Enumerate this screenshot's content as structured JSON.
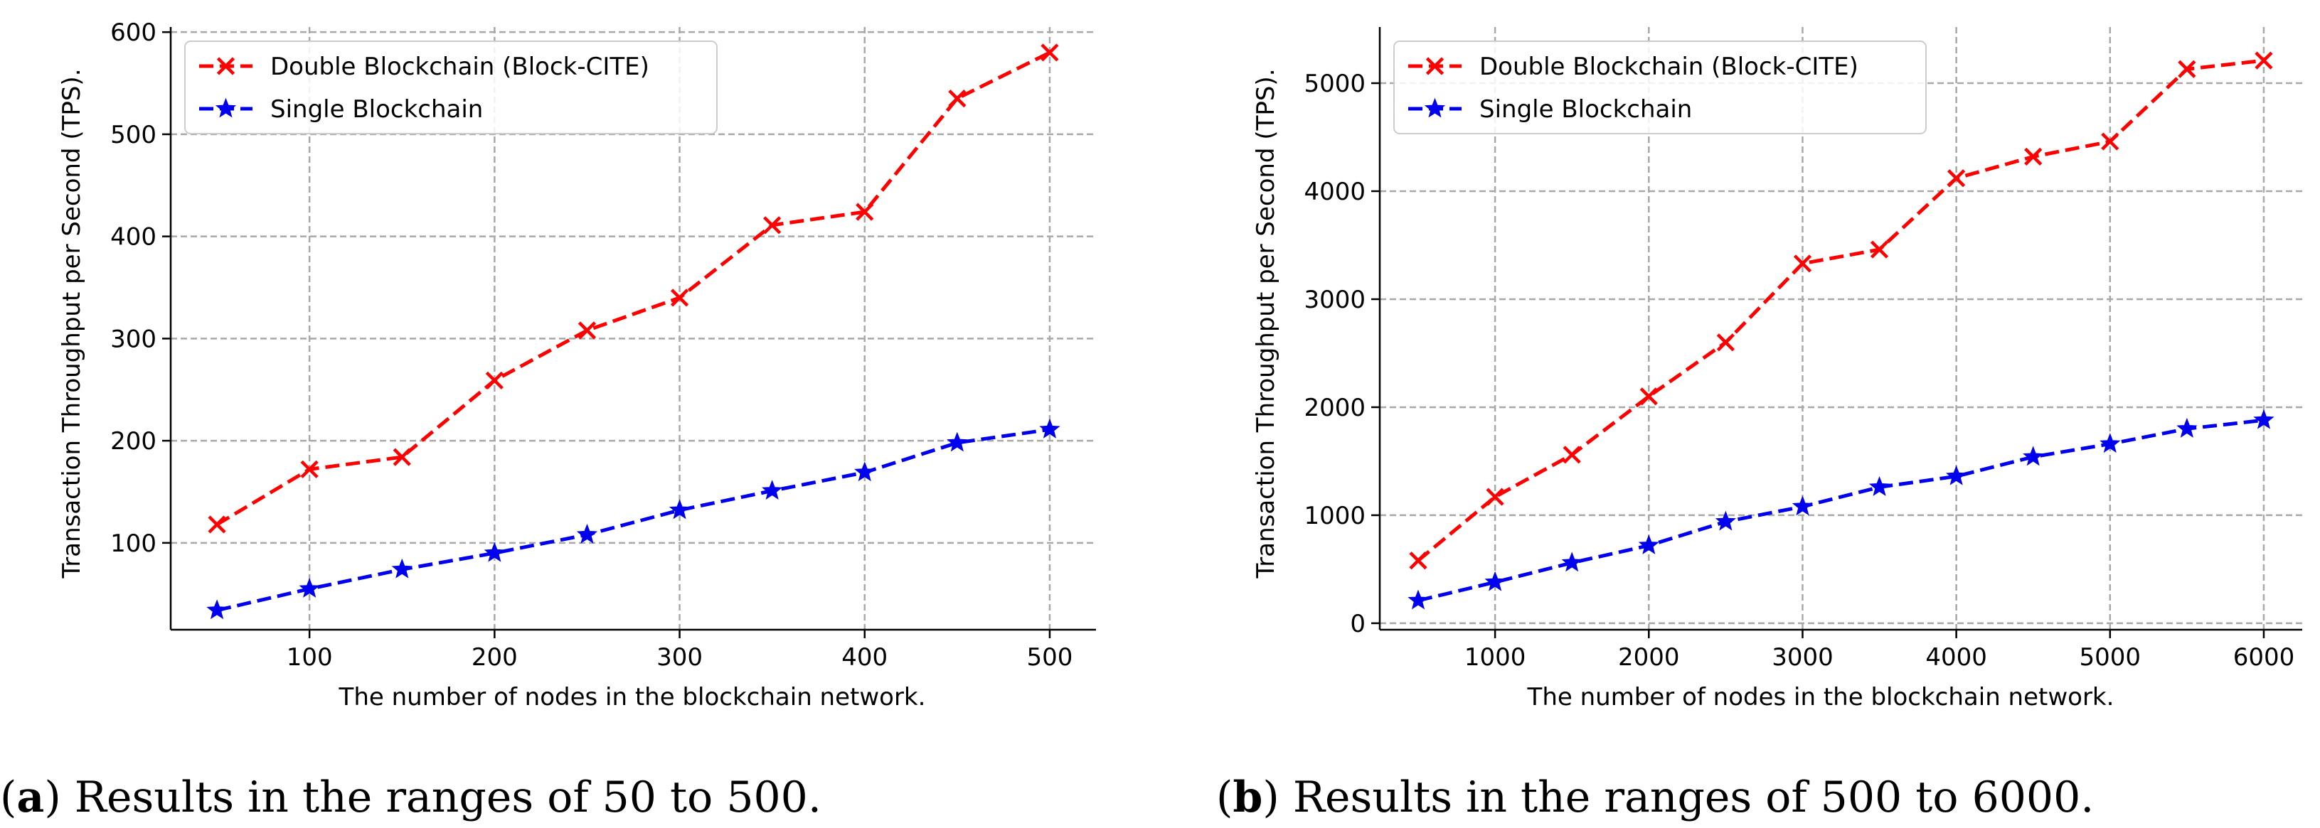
{
  "chart_data": [
    {
      "type": "line",
      "xlabel": "The number of nodes in the blockchain network.",
      "ylabel": "Transaction Throughput per Second (TPS).",
      "xlim": [
        25,
        525
      ],
      "ylim": [
        15,
        605
      ],
      "xticks": [
        100,
        200,
        300,
        400,
        500
      ],
      "yticks": [
        100,
        200,
        300,
        400,
        500,
        600
      ],
      "grid": true,
      "legend_position": "top-left",
      "caption_letter": "a",
      "caption_text": " Results in the ranges of 50 to 500.",
      "series": [
        {
          "name": "Double Blockchain (Block-CITE)",
          "color": "#ff0000",
          "marker": "x",
          "x": [
            50,
            100,
            150,
            200,
            250,
            300,
            350,
            400,
            450,
            500
          ],
          "y": [
            118,
            172,
            184,
            259,
            308,
            340,
            411,
            424,
            535,
            580
          ]
        },
        {
          "name": "Single Blockchain",
          "color": "#0000ee",
          "marker": "star",
          "x": [
            50,
            100,
            150,
            200,
            250,
            300,
            350,
            400,
            450,
            500
          ],
          "y": [
            34,
            55,
            74,
            90,
            108,
            132,
            151,
            169,
            198,
            211
          ]
        }
      ]
    },
    {
      "type": "line",
      "xlabel": "The number of nodes in the blockchain network.",
      "ylabel": "Transaction Throughput per Second (TPS).",
      "xlim": [
        250,
        6250
      ],
      "ylim": [
        -60,
        5520
      ],
      "xticks": [
        1000,
        2000,
        3000,
        4000,
        5000,
        6000
      ],
      "yticks": [
        0,
        1000,
        2000,
        3000,
        4000,
        5000
      ],
      "grid": true,
      "legend_position": "top-left",
      "caption_letter": "b",
      "caption_text": " Results in the ranges of 500 to 6000.",
      "series": [
        {
          "name": "Double Blockchain (Block-CITE)",
          "color": "#ff0000",
          "marker": "x",
          "x": [
            500,
            1000,
            1500,
            2000,
            2500,
            3000,
            3500,
            4000,
            4500,
            5000,
            5500,
            6000
          ],
          "y": [
            580,
            1170,
            1560,
            2100,
            2600,
            3330,
            3460,
            4120,
            4320,
            4460,
            5130,
            5210
          ]
        },
        {
          "name": "Single Blockchain",
          "color": "#0000ee",
          "marker": "star",
          "x": [
            500,
            1000,
            1500,
            2000,
            2500,
            3000,
            3500,
            4000,
            4500,
            5000,
            5500,
            6000
          ],
          "y": [
            210,
            380,
            560,
            720,
            940,
            1080,
            1260,
            1360,
            1540,
            1660,
            1800,
            1880
          ]
        }
      ]
    }
  ]
}
